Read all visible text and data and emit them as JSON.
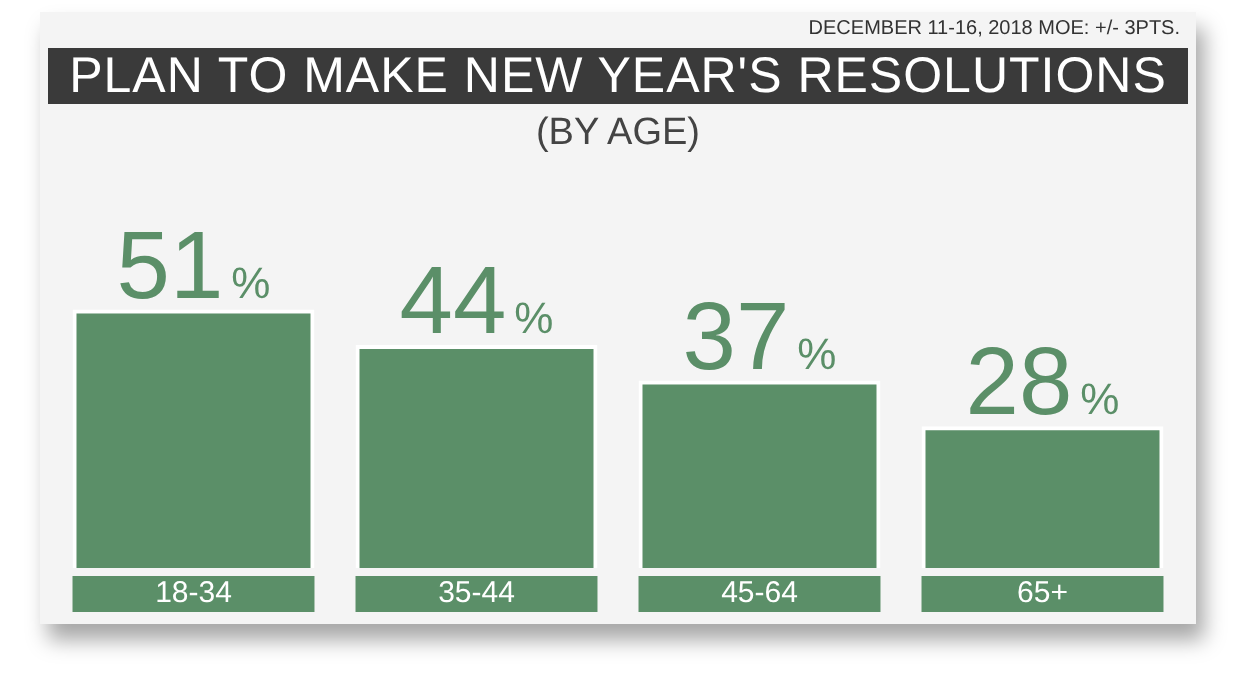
{
  "chart_data": {
    "type": "bar",
    "title": "PLAN TO MAKE NEW YEAR'S RESOLUTIONS",
    "subtitle": "(BY AGE)",
    "annotations": [
      "DECEMBER 11-16, 2018 MOE: +/- 3PTS."
    ],
    "categories": [
      "18-34",
      "35-44",
      "45-64",
      "65+"
    ],
    "values": [
      51,
      44,
      37,
      28
    ],
    "value_labels": [
      "51%",
      "44%",
      "37%",
      "28%"
    ],
    "color": "#5b8f68",
    "grid": false,
    "legend": false
  }
}
